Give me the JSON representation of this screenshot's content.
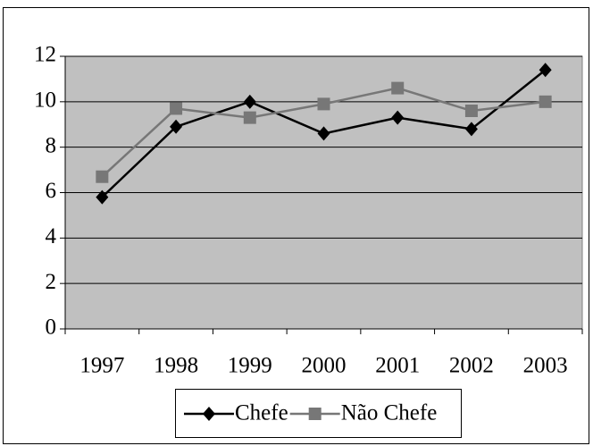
{
  "chart_data": {
    "type": "line",
    "categories": [
      "1997",
      "1998",
      "1999",
      "2000",
      "2001",
      "2002",
      "2003"
    ],
    "series": [
      {
        "name": "Chefe",
        "color": "#000000",
        "marker": "diamond",
        "values": [
          5.8,
          8.9,
          10.0,
          8.6,
          9.3,
          8.8,
          11.4
        ]
      },
      {
        "name": "Não Chefe",
        "color": "#777777",
        "marker": "square",
        "values": [
          6.7,
          9.7,
          9.3,
          9.9,
          10.6,
          9.6,
          10.0
        ]
      }
    ],
    "ylim": [
      0,
      12
    ],
    "yticks": [
      0,
      2,
      4,
      6,
      8,
      10,
      12
    ],
    "grid": true,
    "plot_background": "#c0c0c0",
    "legend": "bottom"
  }
}
